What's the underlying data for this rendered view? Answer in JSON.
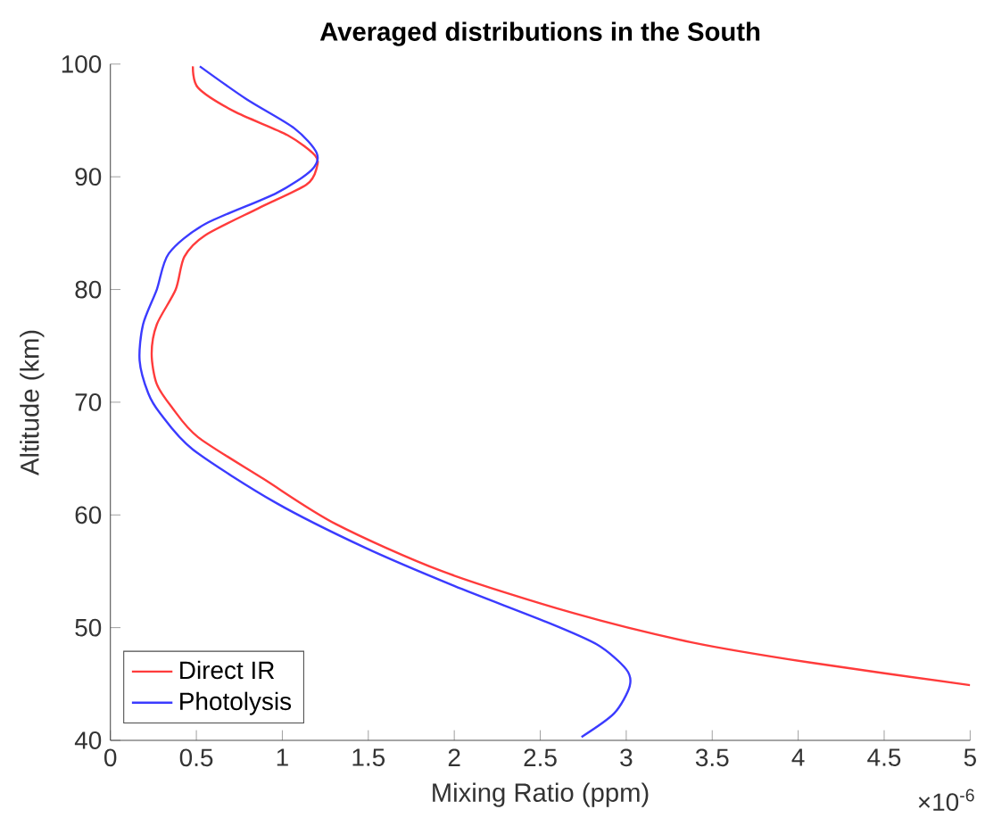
{
  "chart_data": {
    "type": "line",
    "title": "Averaged distributions in the South",
    "xlabel": "Mixing Ratio (ppm)",
    "ylabel": "Altitude (km)",
    "annotations": [
      "×10$^{-6}$"
    ],
    "xlim": [
      0,
      5
    ],
    "xticks": [
      0,
      0.5,
      1,
      1.5,
      2,
      2.5,
      3,
      3.5,
      4,
      4.5,
      5
    ],
    "ylim": [
      40,
      100
    ],
    "yticks": [
      40,
      50,
      60,
      70,
      80,
      90,
      100
    ],
    "grid": false,
    "legend": "bottom left",
    "marker": "none",
    "line_style": "solid",
    "series": [
      {
        "name": "Direct IR",
        "color": "#ff3b3b",
        "x": [
          0.48,
          0.51,
          0.72,
          1.03,
          1.19,
          1.2,
          1.14,
          0.86,
          0.55,
          0.43,
          0.38,
          0.27,
          0.24,
          0.27,
          0.36,
          0.51,
          0.89,
          1.31,
          1.93,
          2.69,
          3.38,
          4.07,
          5.0
        ],
        "values": [
          99.8,
          97.9,
          95.8,
          93.7,
          91.9,
          90.8,
          89.3,
          87.2,
          84.8,
          82.9,
          80.0,
          76.9,
          74.3,
          71.6,
          69.5,
          66.9,
          63.2,
          59.2,
          55.0,
          51.3,
          48.7,
          46.9,
          44.9
        ]
      },
      {
        "name": "Photolysis",
        "color": "#3b3bff",
        "x": [
          0.52,
          0.79,
          1.07,
          1.2,
          1.17,
          0.96,
          0.55,
          0.34,
          0.27,
          0.19,
          0.17,
          0.22,
          0.29,
          0.48,
          0.96,
          1.48,
          2.0,
          2.52,
          2.83,
          3.0,
          3.02,
          2.93,
          2.74
        ],
        "values": [
          99.8,
          96.9,
          94.3,
          92.1,
          90.6,
          88.5,
          85.8,
          83.2,
          80.0,
          76.9,
          73.7,
          70.8,
          69.0,
          65.8,
          61.1,
          57.1,
          53.7,
          50.6,
          48.5,
          46.3,
          44.8,
          42.4,
          40.3
        ]
      }
    ]
  }
}
